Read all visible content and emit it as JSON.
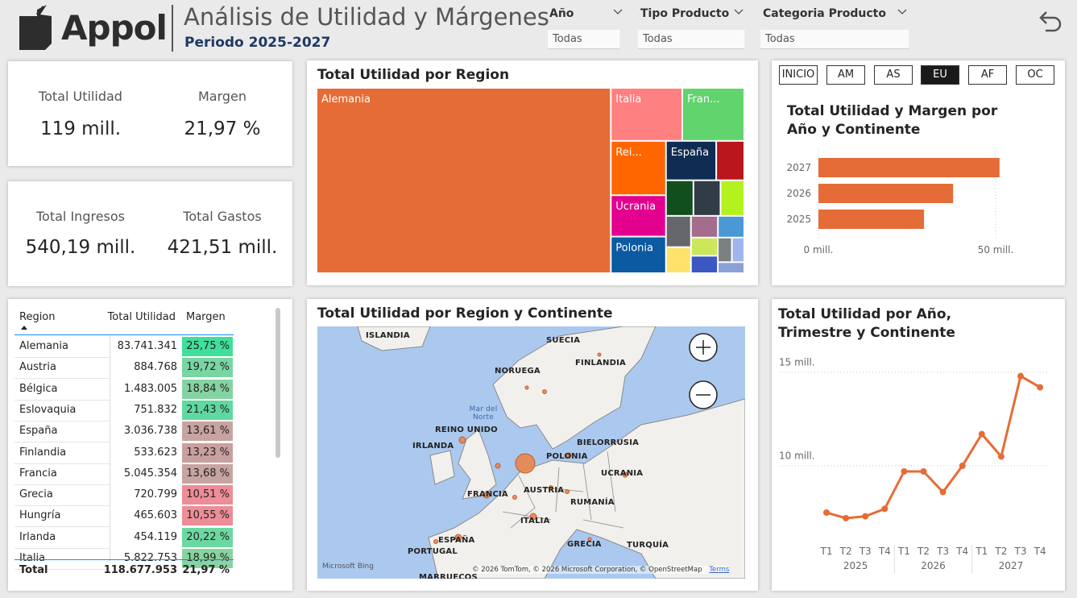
{
  "header": {
    "logo": "Appol",
    "title": "Análisis de Utilidad y Márgenes",
    "subtitle": "Periodo 2025-2027"
  },
  "filters": [
    {
      "label": "Año",
      "value": "Todas"
    },
    {
      "label": "Tipo Producto",
      "value": "Todas"
    },
    {
      "label": "Categoria Producto",
      "value": "Todas"
    }
  ],
  "kpis": [
    {
      "label": "Total Utilidad",
      "value": "119 mill."
    },
    {
      "label": "Margen",
      "value": "21,97 %"
    },
    {
      "label": "Total Ingresos",
      "value": "540,19 mill."
    },
    {
      "label": "Total Gastos",
      "value": "421,51 mill."
    }
  ],
  "table": {
    "columns": [
      "Region",
      "Total Utilidad",
      "Margen"
    ],
    "rows": [
      [
        "Alemania",
        "83.741.341",
        "25,75 %"
      ],
      [
        "Austria",
        "884.768",
        "19,72 %"
      ],
      [
        "Bélgica",
        "1.483.005",
        "18,84 %"
      ],
      [
        "Eslovaquia",
        "751.832",
        "21,43 %"
      ],
      [
        "España",
        "3.036.738",
        "13,61 %"
      ],
      [
        "Finlandia",
        "533.623",
        "13,23 %"
      ],
      [
        "Francia",
        "5.045.354",
        "13,68 %"
      ],
      [
        "Grecia",
        "720.799",
        "10,51 %"
      ],
      [
        "Hungría",
        "465.603",
        "10,55 %"
      ],
      [
        "Irlanda",
        "454.119",
        "20,22 %"
      ],
      [
        "Italia",
        "5.822.753",
        "18,99 %"
      ]
    ],
    "margin_colors": [
      "#3fdf9c",
      "#78d6a3",
      "#86d3a2",
      "#5fd9a0",
      "#c7a3a2",
      "#c9a09f",
      "#c7a3a2",
      "#ec8d97",
      "#ec8d97",
      "#6cd8a1",
      "#88d3a1"
    ],
    "total": [
      "Total",
      "118.677.953",
      "21,97 %"
    ]
  },
  "continent_buttons": {
    "items": [
      "INICIO",
      "AM",
      "AS",
      "EU",
      "AF",
      "OC"
    ],
    "selected": "EU"
  },
  "map": {
    "title": "Total Utilidad por Region y Continente",
    "labels": [
      "ISLANDIA",
      "SUECIA",
      "NORUEGA",
      "FINLANDIA",
      "Mar del Norte",
      "REINO UNIDO",
      "IRLANDA",
      "BIELORRUSIA",
      "POLONIA",
      "UCRANIA",
      "FRANCIA",
      "AUSTRIA",
      "RUMANÍA",
      "ITALIA",
      "ESPAÑA",
      "PORTUGAL",
      "GRECIA",
      "TURQUÍA",
      "MARRUECOS"
    ],
    "attribution": "Microsoft Bing",
    "copyright": "© 2026 TomTom, © 2026 Microsoft Corporation, © OpenStreetMap",
    "terms": "Terms"
  },
  "chart_data": [
    {
      "type": "treemap",
      "title": "Total Utilidad por Region",
      "categories": [
        "Alemania",
        "Italia",
        "Fran...",
        "Rei...",
        "Ucrania",
        "Polonia",
        "España",
        null,
        null,
        null,
        null,
        null,
        null,
        null,
        null,
        null,
        null,
        null,
        null,
        null
      ],
      "values": [
        83.74,
        5.82,
        5.05,
        4.6,
        3.5,
        3.1,
        3.04,
        1.7,
        1.5,
        1.48,
        1.3,
        1.2,
        1.0,
        0.9,
        0.88,
        0.75,
        0.72,
        0.53,
        0.47,
        0.45
      ],
      "colors": [
        "#e66c37",
        "#fe8081",
        "#61d46d",
        "#ff6600",
        "#e4008f",
        "#0b5aa2",
        "#0f2c52",
        "#b9161d",
        "#114f1e",
        "#323c47",
        "#b3f21f",
        "#66676b",
        "#fee26b",
        "#a36d8b",
        "#4a98d4",
        "#cbe85a",
        "#3b57c4",
        "#7b8081",
        "#a0b4ee",
        "#8ca0d8"
      ]
    },
    {
      "type": "bar",
      "orientation": "horizontal",
      "title": "Total Utilidad y Margen por Año y Continente",
      "categories": [
        "2027",
        "2026",
        "2025"
      ],
      "values": [
        51.1,
        38.0,
        29.8
      ],
      "color": "#e66c37",
      "xlim": [
        0,
        55
      ],
      "xticks": [
        {
          "value": 0,
          "label": "0 mill."
        },
        {
          "value": 50,
          "label": "50 mill."
        }
      ],
      "grid": true
    },
    {
      "type": "line",
      "title": "Total Utilidad por Año, Trimestre y Continente",
      "categories": [
        "T1",
        "T2",
        "T3",
        "T4",
        "T1",
        "T2",
        "T3",
        "T4",
        "T1",
        "T2",
        "T3",
        "T4"
      ],
      "groups": [
        "2025",
        "2026",
        "2027"
      ],
      "values": [
        7.5,
        7.2,
        7.3,
        7.7,
        9.7,
        9.7,
        8.6,
        10.0,
        11.7,
        10.5,
        14.8,
        14.2
      ],
      "color": "#e66c37",
      "ylim": [
        6.25,
        15.95
      ],
      "yticks": [
        {
          "value": 10,
          "label": "10 mill."
        },
        {
          "value": 15,
          "label": "15 mill."
        }
      ],
      "grid": true
    }
  ]
}
